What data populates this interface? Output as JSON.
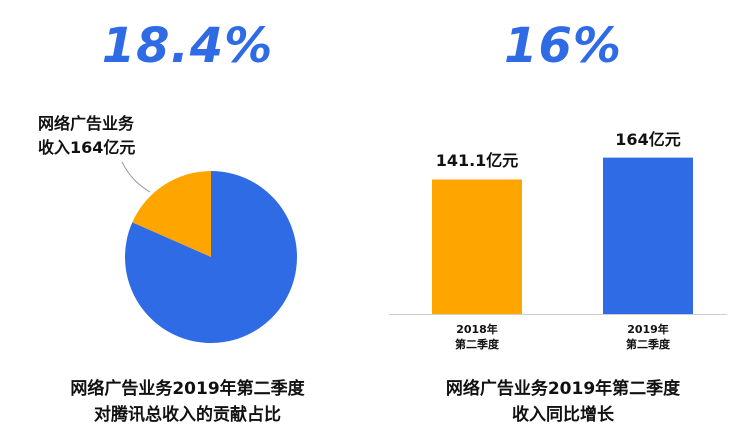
{
  "colors": {
    "blue": "#2f6be5",
    "orange": "#ffa500",
    "percent_text": "#2f6be5"
  },
  "left": {
    "headline": "18.4%",
    "callout_line1": "网络广告业务",
    "callout_line2": "收入164亿元",
    "caption_line1": "网络广告业务2019年第二季度",
    "caption_line2": "对腾讯总收入的贡献占比"
  },
  "right": {
    "headline": "16%",
    "caption_line1": "网络广告业务2019年第二季度",
    "caption_line2": "收入同比增长"
  },
  "chart_data": [
    {
      "type": "pie",
      "title": "",
      "slices": [
        {
          "label": "网络广告业务收入164亿元",
          "value": 18.4,
          "color": "#ffa500"
        },
        {
          "label": "",
          "value": 81.6,
          "color": "#2f6be5"
        }
      ]
    },
    {
      "type": "bar",
      "title": "",
      "categories": [
        {
          "line1": "2018年",
          "line2": "第二季度"
        },
        {
          "line1": "2019年",
          "line2": "第二季度"
        }
      ],
      "values": [
        141.1,
        164
      ],
      "value_labels": [
        "141.1亿元",
        "164亿元"
      ],
      "bar_colors": [
        "#ffa500",
        "#2f6be5"
      ],
      "ylim": [
        0,
        172
      ],
      "xlabel": "",
      "ylabel": ""
    }
  ]
}
